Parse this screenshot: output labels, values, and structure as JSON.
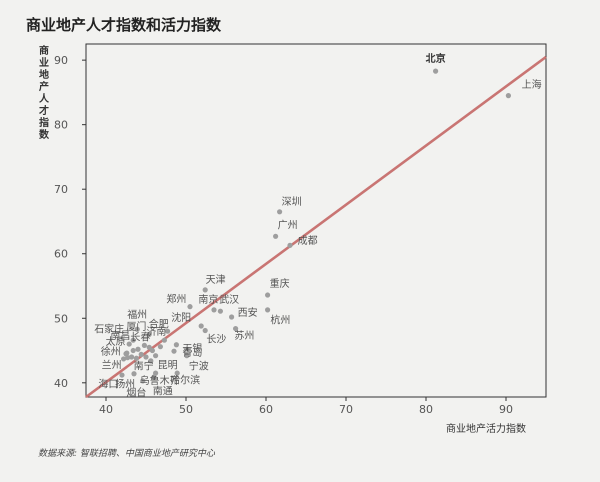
{
  "chart_data": {
    "type": "scatter",
    "title": "商业地产人才指数和活力指数",
    "xlabel": "商业地产活力指数",
    "ylabel": "商业地产人才指数",
    "xlim": [
      37.5,
      95
    ],
    "ylim": [
      37.8,
      92.5
    ],
    "xticks": [
      40,
      50,
      60,
      70,
      80,
      90
    ],
    "yticks": [
      40,
      50,
      60,
      70,
      80,
      90
    ],
    "grid": false,
    "trendline": {
      "x1": 37.5,
      "y1": 37.8,
      "x2": 95,
      "y2": 90.5,
      "color": "#c97573"
    },
    "point_color": "#9e9e9e",
    "points": [
      {
        "label": "北京",
        "x": 81.2,
        "y": 88.3,
        "lx": 81.2,
        "ly": 90.3,
        "anchor": "middle",
        "bold": true
      },
      {
        "label": "上海",
        "x": 90.3,
        "y": 84.5,
        "lx": 93.2,
        "ly": 86.3,
        "anchor": "middle",
        "bold": false
      },
      {
        "label": "深圳",
        "x": 61.7,
        "y": 66.5,
        "lx": 63.2,
        "ly": 68.2,
        "anchor": "middle",
        "bold": false
      },
      {
        "label": "广州",
        "x": 61.2,
        "y": 62.7,
        "lx": 62.7,
        "ly": 64.5,
        "anchor": "middle",
        "bold": false
      },
      {
        "label": "成都",
        "x": 63.0,
        "y": 61.3,
        "lx": 65.2,
        "ly": 62.1,
        "anchor": "middle",
        "bold": false
      },
      {
        "label": "重庆",
        "x": 60.2,
        "y": 53.6,
        "lx": 61.7,
        "ly": 55.5,
        "anchor": "middle",
        "bold": false
      },
      {
        "label": "杭州",
        "x": 60.2,
        "y": 51.3,
        "lx": 61.8,
        "ly": 49.8,
        "anchor": "middle",
        "bold": false
      },
      {
        "label": "天津",
        "x": 52.4,
        "y": 54.4,
        "lx": 53.7,
        "ly": 56.1,
        "anchor": "middle",
        "bold": false
      },
      {
        "label": "郑州",
        "x": 50.5,
        "y": 51.8,
        "lx": 48.8,
        "ly": 53.1,
        "anchor": "middle",
        "bold": false
      },
      {
        "label": "南京",
        "x": 53.5,
        "y": 51.3,
        "lx": 52.8,
        "ly": 53.0,
        "anchor": "middle",
        "bold": false
      },
      {
        "label": "武汉",
        "x": 54.3,
        "y": 51.1,
        "lx": 55.4,
        "ly": 53.0,
        "anchor": "middle",
        "bold": false
      },
      {
        "label": "西安",
        "x": 55.7,
        "y": 50.2,
        "lx": 57.7,
        "ly": 51.0,
        "anchor": "middle",
        "bold": false
      },
      {
        "label": "沈阳",
        "x": 51.9,
        "y": 48.8,
        "lx": 49.4,
        "ly": 50.2,
        "anchor": "middle",
        "bold": false
      },
      {
        "label": "苏州",
        "x": 56.2,
        "y": 48.4,
        "lx": 57.3,
        "ly": 47.4,
        "anchor": "middle",
        "bold": false
      },
      {
        "label": "长沙",
        "x": 52.4,
        "y": 48.1,
        "lx": 53.8,
        "ly": 46.9,
        "anchor": "middle",
        "bold": false
      },
      {
        "label": "福州",
        "x": 43.9,
        "y": 48.3,
        "lx": 43.9,
        "ly": 50.7,
        "anchor": "middle",
        "bold": false
      },
      {
        "label": "合肥",
        "x": 47.7,
        "y": 48.0,
        "lx": 46.6,
        "ly": 49.2,
        "anchor": "middle",
        "bold": false
      },
      {
        "label": "厦门",
        "x": 45.4,
        "y": 47.5,
        "lx": 43.8,
        "ly": 48.8,
        "anchor": "middle",
        "bold": false
      },
      {
        "label": "石家庄",
        "x": 43.4,
        "y": 46.6,
        "lx": 40.4,
        "ly": 48.4,
        "anchor": "middle",
        "bold": false
      },
      {
        "label": "济南",
        "x": 47.3,
        "y": 46.6,
        "lx": 46.3,
        "ly": 48.0,
        "anchor": "middle",
        "bold": false
      },
      {
        "label": "南昌",
        "x": 42.9,
        "y": 46.0,
        "lx": 41.8,
        "ly": 47.4,
        "anchor": "middle",
        "bold": false
      },
      {
        "label": "长春",
        "x": 45.4,
        "y": 45.5,
        "lx": 44.3,
        "ly": 47.2,
        "anchor": "middle",
        "bold": false
      },
      {
        "label": "太原",
        "x": 42.5,
        "y": 44.5,
        "lx": 41.2,
        "ly": 46.5,
        "anchor": "middle",
        "bold": false
      },
      {
        "label": "无锡",
        "x": 48.8,
        "y": 45.9,
        "lx": 50.8,
        "ly": 45.4,
        "anchor": "middle",
        "bold": false
      },
      {
        "label": "青岛",
        "x": 48.5,
        "y": 44.9,
        "lx": 50.8,
        "ly": 44.8,
        "anchor": "middle",
        "bold": false
      },
      {
        "label": "徐州",
        "x": 42.7,
        "y": 43.9,
        "lx": 40.6,
        "ly": 44.9,
        "anchor": "middle",
        "bold": false
      },
      {
        "label": "兰州",
        "x": 42.2,
        "y": 43.7,
        "lx": 40.7,
        "ly": 42.8,
        "anchor": "middle",
        "bold": false
      },
      {
        "label": "南宁",
        "x": 45.6,
        "y": 43.4,
        "lx": 44.7,
        "ly": 42.7,
        "anchor": "middle",
        "bold": false
      },
      {
        "label": "昆明",
        "x": 46.2,
        "y": 44.2,
        "lx": 47.7,
        "ly": 42.8,
        "anchor": "middle",
        "bold": false
      },
      {
        "label": "宁波",
        "x": 50.1,
        "y": 44.2,
        "lx": 51.6,
        "ly": 42.7,
        "anchor": "middle",
        "bold": false
      },
      {
        "label": "哈尔滨",
        "x": 48.9,
        "y": 41.5,
        "lx": 49.9,
        "ly": 40.5,
        "anchor": "middle",
        "bold": false
      },
      {
        "label": "乌鲁木齐",
        "x": 46.2,
        "y": 41.5,
        "lx": 46.7,
        "ly": 40.4,
        "anchor": "middle",
        "bold": false
      },
      {
        "label": "南通",
        "x": 46.0,
        "y": 40.9,
        "lx": 47.1,
        "ly": 38.8,
        "anchor": "middle",
        "bold": false
      },
      {
        "label": "海口",
        "x": 42.0,
        "y": 41.2,
        "lx": 40.3,
        "ly": 39.9,
        "anchor": "middle",
        "bold": false
      },
      {
        "label": "扬州",
        "x": 43.5,
        "y": 41.4,
        "lx": 42.4,
        "ly": 39.9,
        "anchor": "middle",
        "bold": false
      },
      {
        "label": "烟台",
        "x": 44.6,
        "y": 40.3,
        "lx": 43.8,
        "ly": 38.6,
        "anchor": "middle",
        "bold": false
      }
    ],
    "unlabeled_points": [
      {
        "x": 42.6,
        "y": 44.6
      },
      {
        "x": 43.2,
        "y": 44.0
      },
      {
        "x": 43.8,
        "y": 43.8
      },
      {
        "x": 44.0,
        "y": 45.2
      },
      {
        "x": 44.4,
        "y": 44.4
      },
      {
        "x": 44.8,
        "y": 45.8
      },
      {
        "x": 45.0,
        "y": 44.0
      },
      {
        "x": 45.8,
        "y": 45.0
      },
      {
        "x": 46.8,
        "y": 45.6
      },
      {
        "x": 43.4,
        "y": 45.0
      }
    ]
  },
  "source_text": "数据来源: 智联招聘、中国商业地产研究中心"
}
